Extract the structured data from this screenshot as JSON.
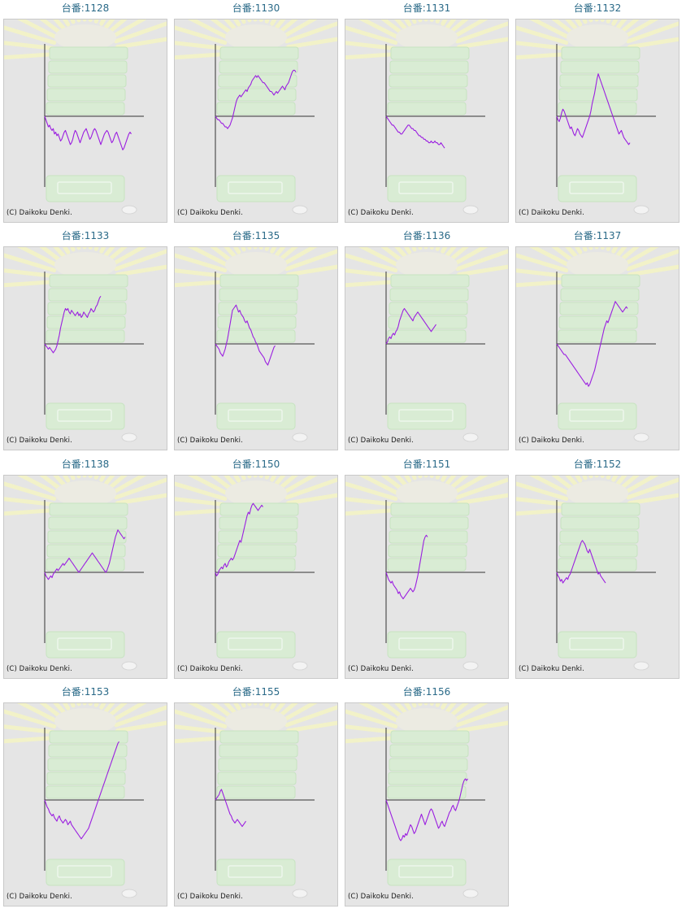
{
  "label_prefix": "台番:",
  "copyright": "(C) Daikoku Denki.",
  "colors": {
    "title": "#2a6a88",
    "line": "#9b1fe0",
    "axis": "#333333",
    "panel_bg": "#e5e5e5",
    "panel_border": "#c9c9c9"
  },
  "cards": [
    {
      "label": "台番:1128",
      "values": [
        0,
        -2,
        -4,
        -6,
        -5,
        -7,
        -8,
        -7,
        -10,
        -9,
        -11,
        -10,
        -12,
        -14,
        -13,
        -11,
        -9,
        -8,
        -10,
        -12,
        -14,
        -16,
        -15,
        -13,
        -10,
        -8,
        -9,
        -11,
        -13,
        -15,
        -13,
        -11,
        -9,
        -8,
        -7,
        -9,
        -11,
        -13,
        -12,
        -10,
        -8,
        -7,
        -8,
        -10,
        -12,
        -14,
        -16,
        -14,
        -12,
        -10,
        -9,
        -8,
        -9,
        -11,
        -13,
        -15,
        -14,
        -12,
        -10,
        -9,
        -11,
        -13,
        -15,
        -17,
        -19,
        -18,
        -16,
        -14,
        -12,
        -10,
        -9,
        -10
      ]
    },
    {
      "label": "台番:1130",
      "values": [
        0,
        -1,
        -2,
        -2,
        -3,
        -4,
        -4,
        -5,
        -6,
        -6,
        -7,
        -6,
        -5,
        -3,
        -1,
        2,
        5,
        8,
        10,
        11,
        12,
        11,
        12,
        13,
        14,
        15,
        14,
        16,
        17,
        18,
        20,
        21,
        22,
        23,
        22,
        23,
        22,
        21,
        20,
        19,
        19,
        18,
        17,
        16,
        15,
        14,
        14,
        13,
        12,
        13,
        14,
        13,
        14,
        15,
        16,
        17,
        16,
        15,
        17,
        18,
        19,
        21,
        23,
        25,
        26,
        26,
        25
      ]
    },
    {
      "label": "台番:1131",
      "values": [
        0,
        -1,
        -2,
        -3,
        -4,
        -5,
        -5,
        -6,
        -7,
        -8,
        -9,
        -9,
        -10,
        -10,
        -9,
        -8,
        -7,
        -6,
        -5,
        -5,
        -6,
        -7,
        -7,
        -8,
        -8,
        -9,
        -10,
        -11,
        -11,
        -12,
        -12,
        -13,
        -13,
        -14,
        -14,
        -15,
        -15,
        -14,
        -15,
        -15,
        -14,
        -15,
        -15,
        -16,
        -16,
        -15,
        -16,
        -17,
        -18
      ]
    },
    {
      "label": "台番:1132",
      "values": [
        0,
        -2,
        -3,
        -1,
        2,
        4,
        3,
        1,
        -1,
        -3,
        -5,
        -7,
        -6,
        -8,
        -10,
        -11,
        -9,
        -7,
        -8,
        -10,
        -11,
        -12,
        -10,
        -8,
        -6,
        -4,
        -2,
        0,
        3,
        7,
        10,
        13,
        17,
        21,
        24,
        22,
        20,
        18,
        16,
        14,
        12,
        10,
        8,
        6,
        4,
        2,
        0,
        -2,
        -4,
        -6,
        -8,
        -10,
        -9,
        -8,
        -10,
        -12,
        -13,
        -14,
        -15,
        -16,
        -15
      ]
    },
    {
      "label": "台番:1133",
      "values": [
        0,
        -1,
        -2,
        -3,
        -2,
        -3,
        -4,
        -5,
        -4,
        -3,
        -1,
        2,
        5,
        9,
        12,
        15,
        18,
        20,
        19,
        20,
        18,
        17,
        19,
        18,
        17,
        16,
        17,
        18,
        16,
        17,
        15,
        16,
        18,
        17,
        16,
        15,
        17,
        18,
        20,
        19,
        18,
        19,
        21,
        22,
        24,
        26,
        27
      ]
    },
    {
      "label": "台番:1135",
      "values": [
        0,
        -1,
        -2,
        -3,
        -5,
        -6,
        -7,
        -5,
        -3,
        0,
        3,
        7,
        11,
        15,
        19,
        20,
        21,
        22,
        20,
        18,
        19,
        17,
        16,
        15,
        13,
        12,
        13,
        11,
        9,
        8,
        6,
        4,
        3,
        1,
        0,
        -2,
        -4,
        -5,
        -6,
        -7,
        -8,
        -10,
        -11,
        -12,
        -10,
        -8,
        -6,
        -4,
        -2,
        -1
      ]
    },
    {
      "label": "台番:1136",
      "values": [
        0,
        1,
        3,
        4,
        3,
        5,
        6,
        5,
        7,
        8,
        10,
        13,
        15,
        17,
        19,
        20,
        19,
        18,
        17,
        16,
        15,
        14,
        13,
        15,
        16,
        17,
        18,
        17,
        16,
        15,
        14,
        13,
        12,
        11,
        10,
        9,
        8,
        7,
        8,
        9,
        10,
        11
      ]
    },
    {
      "label": "台番:1137",
      "values": [
        0,
        -1,
        -2,
        -3,
        -4,
        -5,
        -6,
        -6,
        -7,
        -8,
        -9,
        -10,
        -11,
        -12,
        -13,
        -14,
        -15,
        -16,
        -17,
        -18,
        -19,
        -20,
        -21,
        -22,
        -23,
        -22,
        -24,
        -23,
        -21,
        -19,
        -17,
        -15,
        -12,
        -9,
        -6,
        -3,
        0,
        3,
        6,
        9,
        11,
        13,
        12,
        14,
        16,
        18,
        20,
        22,
        24,
        23,
        22,
        21,
        20,
        19,
        18,
        19,
        20,
        21,
        20
      ]
    },
    {
      "label": "台番:1138",
      "values": [
        0,
        -2,
        -3,
        -4,
        -3,
        -2,
        -3,
        -1,
        0,
        1,
        2,
        1,
        2,
        3,
        4,
        5,
        4,
        5,
        6,
        7,
        8,
        7,
        6,
        5,
        4,
        3,
        2,
        1,
        0,
        1,
        2,
        3,
        4,
        5,
        6,
        7,
        8,
        9,
        10,
        11,
        10,
        9,
        8,
        7,
        6,
        5,
        4,
        3,
        2,
        1,
        0,
        1,
        3,
        5,
        8,
        11,
        14,
        17,
        20,
        22,
        24,
        23,
        22,
        21,
        20,
        19,
        20
      ]
    },
    {
      "label": "台番:1150",
      "values": [
        0,
        -2,
        -1,
        1,
        2,
        3,
        2,
        4,
        5,
        3,
        4,
        6,
        7,
        8,
        7,
        8,
        10,
        12,
        14,
        16,
        18,
        17,
        20,
        23,
        26,
        29,
        32,
        34,
        33,
        36,
        38,
        39,
        38,
        37,
        36,
        35,
        36,
        37,
        38,
        37
      ]
    },
    {
      "label": "台番:1151",
      "values": [
        0,
        -2,
        -4,
        -5,
        -6,
        -5,
        -7,
        -8,
        -9,
        -10,
        -12,
        -11,
        -13,
        -14,
        -15,
        -14,
        -13,
        -12,
        -11,
        -10,
        -9,
        -10,
        -11,
        -10,
        -8,
        -5,
        -2,
        2,
        6,
        10,
        14,
        18,
        20,
        21,
        20
      ]
    },
    {
      "label": "台番:1152",
      "values": [
        0,
        -2,
        -3,
        -5,
        -4,
        -6,
        -5,
        -4,
        -3,
        -4,
        -2,
        -1,
        1,
        3,
        5,
        7,
        9,
        11,
        13,
        15,
        17,
        18,
        17,
        16,
        14,
        12,
        11,
        13,
        11,
        9,
        7,
        5,
        3,
        1,
        -1,
        0,
        -2,
        -3,
        -4,
        -5,
        -6
      ]
    },
    {
      "label": "台番:1153",
      "values": [
        0,
        -2,
        -4,
        -5,
        -7,
        -8,
        -9,
        -8,
        -10,
        -11,
        -12,
        -10,
        -9,
        -11,
        -12,
        -13,
        -12,
        -11,
        -12,
        -14,
        -13,
        -12,
        -14,
        -15,
        -16,
        -17,
        -18,
        -19,
        -20,
        -21,
        -22,
        -21,
        -20,
        -19,
        -18,
        -17,
        -16,
        -14,
        -12,
        -10,
        -8,
        -6,
        -4,
        -2,
        0,
        2,
        4,
        6,
        8,
        10,
        12,
        14,
        16,
        18,
        20,
        22,
        24,
        26,
        28,
        30,
        32,
        33
      ]
    },
    {
      "label": "台番:1155",
      "values": [
        0,
        1,
        2,
        3,
        5,
        6,
        4,
        2,
        0,
        -2,
        -4,
        -6,
        -8,
        -9,
        -11,
        -12,
        -13,
        -12,
        -11,
        -12,
        -13,
        -14,
        -15,
        -14,
        -13,
        -12
      ]
    },
    {
      "label": "台番:1156",
      "values": [
        0,
        -2,
        -4,
        -6,
        -8,
        -10,
        -12,
        -14,
        -16,
        -18,
        -20,
        -22,
        -23,
        -22,
        -20,
        -21,
        -19,
        -20,
        -18,
        -16,
        -14,
        -15,
        -17,
        -19,
        -18,
        -16,
        -14,
        -12,
        -10,
        -8,
        -10,
        -12,
        -14,
        -12,
        -10,
        -8,
        -6,
        -5,
        -6,
        -8,
        -10,
        -12,
        -14,
        -16,
        -15,
        -13,
        -12,
        -14,
        -15,
        -13,
        -11,
        -9,
        -7,
        -6,
        -4,
        -3,
        -5,
        -6,
        -4,
        -2,
        0,
        3,
        6,
        9,
        11,
        12,
        11,
        12
      ]
    }
  ]
}
